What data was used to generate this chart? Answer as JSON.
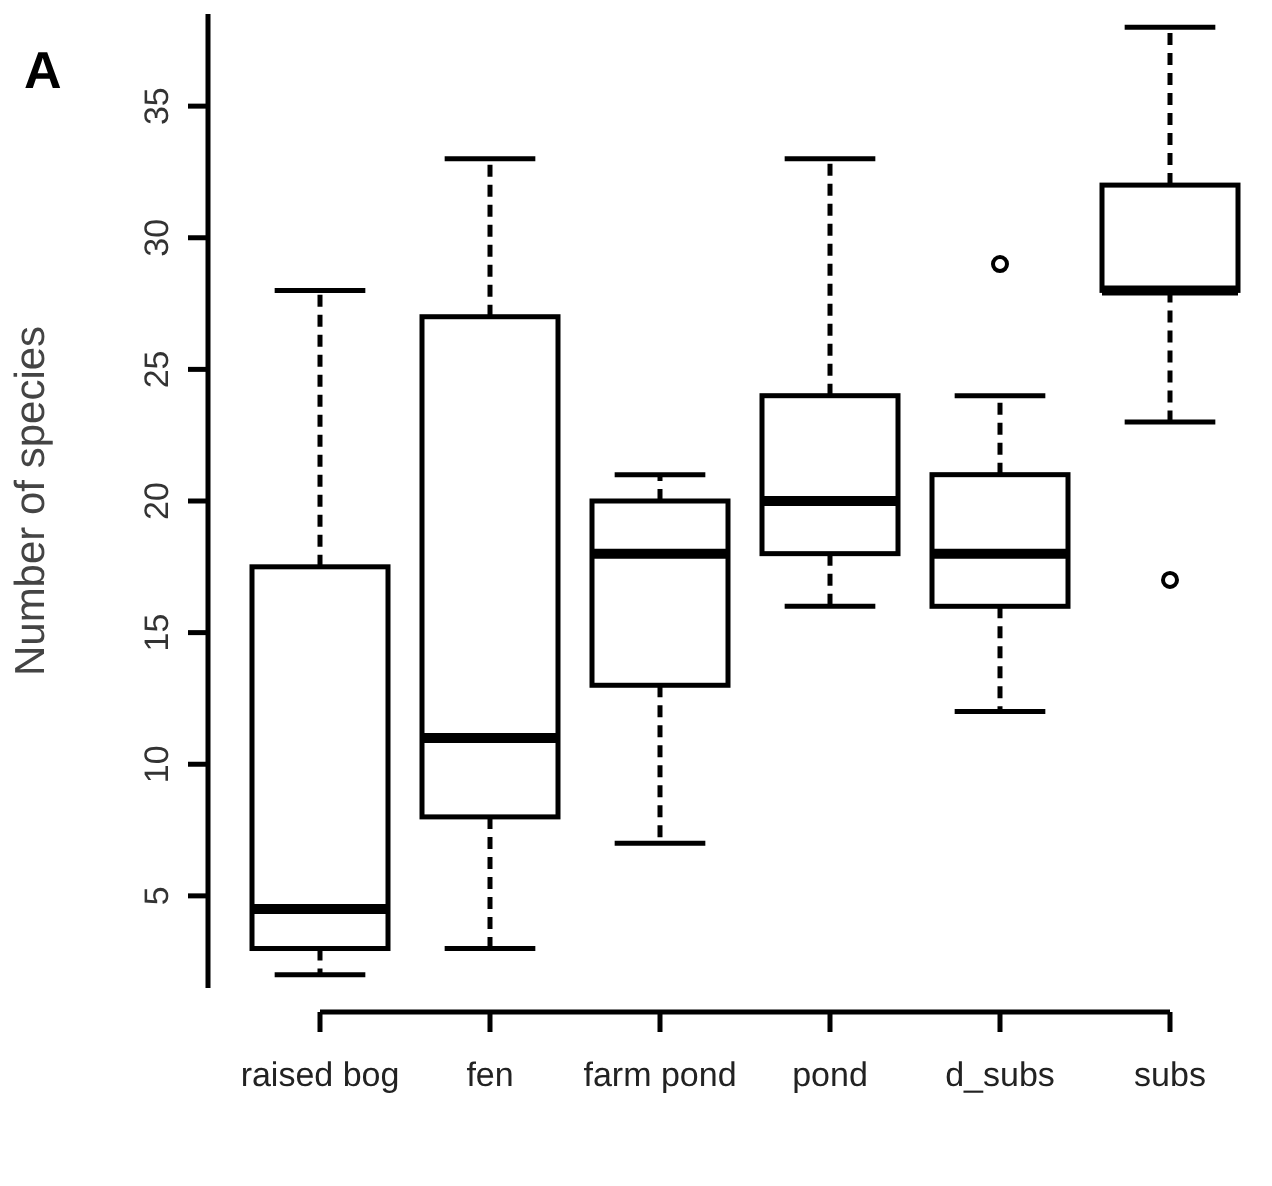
{
  "chart_data": {
    "type": "box",
    "title": "A",
    "ylabel": "Number of  species",
    "categories": [
      "raised bog",
      "fen",
      "farm pond",
      "pond",
      "d_subs",
      "subs"
    ],
    "boxes": [
      {
        "low": 2,
        "q1": 3,
        "median": 4.5,
        "q3": 17.5,
        "high": 28
      },
      {
        "low": 3,
        "q1": 8,
        "median": 11,
        "q3": 27,
        "high": 33
      },
      {
        "low": 7,
        "q1": 13,
        "median": 18,
        "q3": 20,
        "high": 21
      },
      {
        "low": 16,
        "q1": 18,
        "median": 20,
        "q3": 24,
        "high": 33
      },
      {
        "low": 12,
        "q1": 16,
        "median": 18,
        "q3": 21,
        "high": 24,
        "outliers": [
          29
        ]
      },
      {
        "low": 23,
        "q1": 28,
        "median": 28,
        "q3": 32,
        "high": 38,
        "outliers": [
          17
        ]
      }
    ],
    "ylim": [
      1.5,
      38.5
    ],
    "yticks": [
      5,
      10,
      15,
      20,
      25,
      30,
      35
    ],
    "grid": false
  }
}
